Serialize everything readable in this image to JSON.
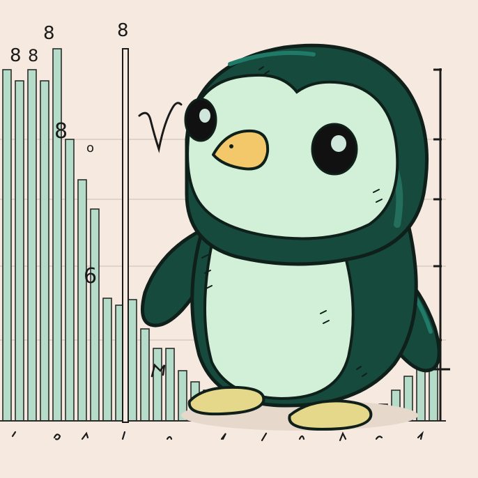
{
  "scene": {
    "subject": "penguin",
    "background_color": "#f6e9df",
    "bar_color": "#b4dcc8",
    "penguin_body_color": "#164a3c",
    "penguin_belly_color": "#d2f0d8",
    "beak_color": "#f2c86a",
    "feet_color": "#e6d88a"
  },
  "doodles": {
    "marks": [
      "8",
      "8",
      "8",
      "8",
      "8",
      "6",
      "o"
    ]
  },
  "chart_data": {
    "type": "bar",
    "bars": [
      100,
      116,
      100,
      116,
      70,
      200,
      258,
      300,
      428,
      438,
      430,
      472,
      500,
      500,
      532,
      548,
      560,
      566,
      568,
      568,
      568,
      530,
      530,
      568,
      580,
      590,
      590,
      590,
      590,
      590,
      580,
      560,
      540,
      520,
      510
    ]
  }
}
